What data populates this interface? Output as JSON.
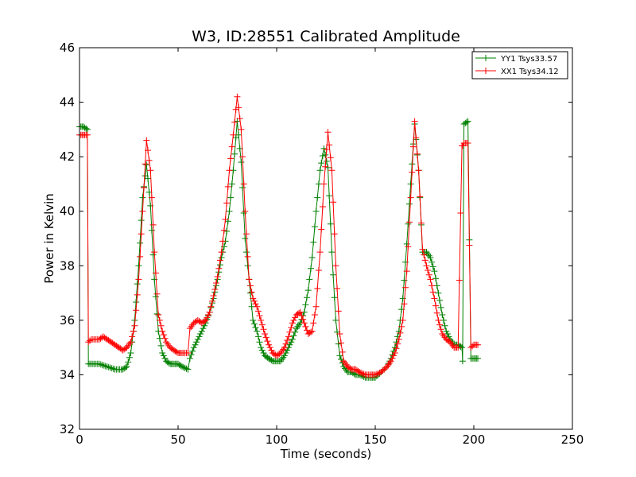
{
  "chart_data": {
    "type": "line",
    "title": "W3, ID:28551 Calibrated Amplitude",
    "xlabel": "Time (seconds)",
    "ylabel": "Power in Kelvin",
    "xlim": [
      0,
      250
    ],
    "ylim": [
      32,
      46
    ],
    "xticks": [
      "0",
      "50",
      "100",
      "150",
      "200",
      "250"
    ],
    "yticks": [
      "32",
      "34",
      "36",
      "38",
      "40",
      "42",
      "44",
      "46"
    ],
    "grid": false,
    "legend_position": "top-right",
    "marker": "+",
    "series": [
      {
        "name": "YY1 Tsys33.57",
        "color": "#008000",
        "x": [
          0,
          2,
          4,
          4.5,
          6,
          10,
          14,
          18,
          22,
          24,
          26,
          28,
          30,
          32,
          34,
          36,
          38,
          40,
          42,
          44,
          46,
          48,
          50,
          52,
          55,
          56,
          58,
          60,
          62,
          64,
          66,
          68,
          70,
          72,
          74,
          76,
          78,
          80,
          82,
          84,
          86,
          88,
          90,
          92,
          94,
          96,
          98,
          100,
          102,
          104,
          106,
          108,
          110,
          112,
          114,
          116,
          118,
          120,
          122,
          124,
          126,
          128,
          130,
          132,
          134,
          136,
          138,
          140,
          142,
          145,
          148,
          150,
          153,
          156,
          158,
          160,
          162,
          164,
          166,
          168,
          170,
          172,
          174,
          176,
          178,
          180,
          182,
          184,
          186,
          188,
          190,
          192,
          194,
          194.3,
          195,
          197,
          198.5,
          200,
          202
        ],
        "y": [
          43.1,
          43.1,
          43.0,
          34.4,
          34.4,
          34.4,
          34.3,
          34.2,
          34.2,
          34.3,
          34.8,
          36.0,
          38.0,
          40.5,
          41.7,
          40.2,
          37.5,
          35.6,
          34.8,
          34.5,
          34.4,
          34.4,
          34.4,
          34.3,
          34.2,
          34.6,
          35.0,
          35.3,
          35.6,
          35.9,
          36.3,
          36.8,
          37.5,
          38.3,
          38.9,
          40.0,
          41.5,
          43.3,
          41.8,
          39.0,
          37.5,
          36.0,
          35.6,
          35.0,
          34.7,
          34.6,
          34.5,
          34.5,
          34.5,
          34.7,
          35.0,
          35.3,
          35.7,
          35.9,
          36.3,
          37.1,
          38.3,
          40.0,
          41.5,
          42.3,
          41.6,
          38.5,
          36.0,
          34.7,
          34.3,
          34.1,
          34.1,
          34.0,
          34.0,
          33.9,
          33.9,
          33.9,
          34.1,
          34.3,
          34.6,
          35.0,
          35.6,
          36.8,
          38.8,
          41.0,
          43.2,
          41.5,
          38.5,
          38.5,
          38.3,
          37.8,
          37.0,
          36.2,
          35.6,
          35.3,
          35.1,
          35.1,
          35.0,
          34.5,
          43.2,
          43.3,
          34.6,
          34.6,
          34.6
        ]
      },
      {
        "name": "XX1 Tsys34.12",
        "color": "#ff0000",
        "x": [
          0,
          2,
          4,
          4.5,
          6,
          10,
          12,
          14,
          16,
          18,
          20,
          22,
          24,
          26,
          28,
          30,
          32,
          34,
          36,
          38,
          40,
          42,
          44,
          46,
          48,
          50,
          52,
          55,
          56,
          58,
          60,
          62,
          64,
          66,
          68,
          70,
          72,
          74,
          76,
          78,
          80,
          82,
          84,
          86,
          88,
          90,
          92,
          94,
          96,
          98,
          100,
          102,
          104,
          106,
          108,
          110,
          112,
          114,
          116,
          118,
          120,
          122,
          124,
          126,
          128,
          130,
          132,
          134,
          136,
          138,
          140,
          142,
          145,
          148,
          150,
          153,
          156,
          158,
          160,
          162,
          164,
          166,
          168,
          170,
          172,
          174,
          176,
          178,
          180,
          182,
          184,
          186,
          188,
          190,
          192,
          194,
          194.3,
          195,
          197,
          198.5,
          200,
          202
        ],
        "y": [
          42.8,
          42.8,
          42.8,
          35.2,
          35.3,
          35.3,
          35.4,
          35.3,
          35.2,
          35.1,
          35.0,
          34.9,
          35.0,
          35.2,
          35.8,
          37.5,
          40.0,
          42.6,
          41.5,
          38.5,
          36.2,
          35.6,
          35.2,
          35.0,
          34.9,
          34.8,
          34.8,
          34.8,
          35.7,
          35.9,
          36.0,
          35.9,
          36.0,
          36.3,
          36.9,
          37.6,
          38.5,
          39.7,
          41.5,
          42.8,
          44.2,
          43.0,
          40.0,
          37.5,
          36.8,
          36.5,
          36.0,
          35.5,
          35.1,
          34.8,
          34.7,
          34.8,
          35.0,
          35.4,
          35.9,
          36.2,
          36.3,
          35.9,
          35.5,
          35.6,
          36.5,
          38.5,
          41.0,
          42.9,
          41.5,
          38.0,
          35.5,
          34.5,
          34.3,
          34.2,
          34.2,
          34.1,
          34.0,
          34.0,
          34.0,
          34.1,
          34.3,
          34.5,
          34.8,
          35.3,
          36.0,
          37.8,
          40.5,
          43.3,
          41.5,
          38.6,
          38.0,
          37.5,
          36.8,
          36.0,
          35.5,
          35.3,
          35.2,
          35.0,
          35.0,
          42.4,
          42.4,
          42.5,
          42.5,
          35.0,
          35.1,
          35.1
        ]
      }
    ]
  }
}
